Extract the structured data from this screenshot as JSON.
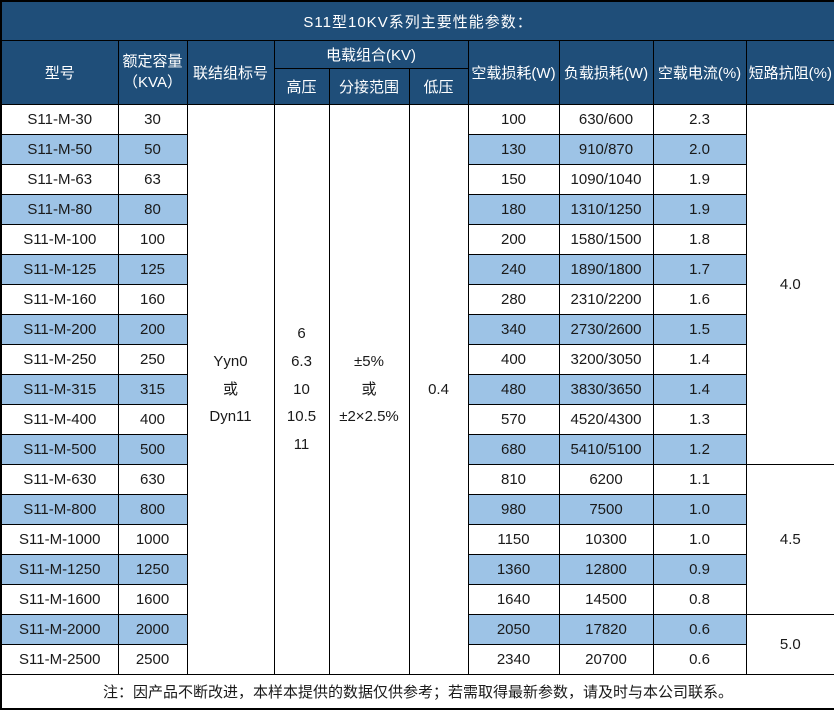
{
  "title": "S11型10KV系列主要性能参数：",
  "columns": {
    "model": "型号",
    "capacity": "额定容量\n（KVA）",
    "connection": "联结组标号",
    "load_combo": "电载组合(KV)",
    "hv": "高压",
    "tap_range": "分接范围",
    "lv": "低压",
    "no_load_loss": "空载损耗(W)",
    "load_loss": "负载损耗(W)",
    "no_load_current": "空载电流(%)",
    "impedance": "短路抗阻(%)"
  },
  "merged": {
    "connection": "Yyn0\n或\nDyn11",
    "hv": "6\n6.3\n10\n10.5\n11",
    "tap_range": "±5%\n或\n±2×2.5%",
    "lv": "0.4"
  },
  "rows": [
    {
      "model": "S11-M-30",
      "capacity": "30",
      "no_load_loss": "100",
      "load_loss": "630/600",
      "no_load_current": "2.3"
    },
    {
      "model": "S11-M-50",
      "capacity": "50",
      "no_load_loss": "130",
      "load_loss": "910/870",
      "no_load_current": "2.0"
    },
    {
      "model": "S11-M-63",
      "capacity": "63",
      "no_load_loss": "150",
      "load_loss": "1090/1040",
      "no_load_current": "1.9"
    },
    {
      "model": "S11-M-80",
      "capacity": "80",
      "no_load_loss": "180",
      "load_loss": "1310/1250",
      "no_load_current": "1.9"
    },
    {
      "model": "S11-M-100",
      "capacity": "100",
      "no_load_loss": "200",
      "load_loss": "1580/1500",
      "no_load_current": "1.8"
    },
    {
      "model": "S11-M-125",
      "capacity": "125",
      "no_load_loss": "240",
      "load_loss": "1890/1800",
      "no_load_current": "1.7"
    },
    {
      "model": "S11-M-160",
      "capacity": "160",
      "no_load_loss": "280",
      "load_loss": "2310/2200",
      "no_load_current": "1.6"
    },
    {
      "model": "S11-M-200",
      "capacity": "200",
      "no_load_loss": "340",
      "load_loss": "2730/2600",
      "no_load_current": "1.5"
    },
    {
      "model": "S11-M-250",
      "capacity": "250",
      "no_load_loss": "400",
      "load_loss": "3200/3050",
      "no_load_current": "1.4"
    },
    {
      "model": "S11-M-315",
      "capacity": "315",
      "no_load_loss": "480",
      "load_loss": "3830/3650",
      "no_load_current": "1.4"
    },
    {
      "model": "S11-M-400",
      "capacity": "400",
      "no_load_loss": "570",
      "load_loss": "4520/4300",
      "no_load_current": "1.3"
    },
    {
      "model": "S11-M-500",
      "capacity": "500",
      "no_load_loss": "680",
      "load_loss": "5410/5100",
      "no_load_current": "1.2"
    },
    {
      "model": "S11-M-630",
      "capacity": "630",
      "no_load_loss": "810",
      "load_loss": "6200",
      "no_load_current": "1.1"
    },
    {
      "model": "S11-M-800",
      "capacity": "800",
      "no_load_loss": "980",
      "load_loss": "7500",
      "no_load_current": "1.0"
    },
    {
      "model": "S11-M-1000",
      "capacity": "1000",
      "no_load_loss": "1150",
      "load_loss": "10300",
      "no_load_current": "1.0"
    },
    {
      "model": "S11-M-1250",
      "capacity": "1250",
      "no_load_loss": "1360",
      "load_loss": "12800",
      "no_load_current": "0.9"
    },
    {
      "model": "S11-M-1600",
      "capacity": "1600",
      "no_load_loss": "1640",
      "load_loss": "14500",
      "no_load_current": "0.8"
    },
    {
      "model": "S11-M-2000",
      "capacity": "2000",
      "no_load_loss": "2050",
      "load_loss": "17820",
      "no_load_current": "0.6"
    },
    {
      "model": "S11-M-2500",
      "capacity": "2500",
      "no_load_loss": "2340",
      "load_loss": "20700",
      "no_load_current": "0.6"
    }
  ],
  "impedance_groups": [
    {
      "value": "4.0",
      "span": 12
    },
    {
      "value": "4.5",
      "span": 5
    },
    {
      "value": "5.0",
      "span": 2
    }
  ],
  "note": "注：因产品不断改进，本样本提供的数据仅供参考；若需取得最新参数，请及时与本公司联系。",
  "colors": {
    "header_bg": "#1F4E79",
    "alt_row_bg": "#9DC3E6",
    "header_text": "#FFFFFF",
    "border": "#000000"
  }
}
